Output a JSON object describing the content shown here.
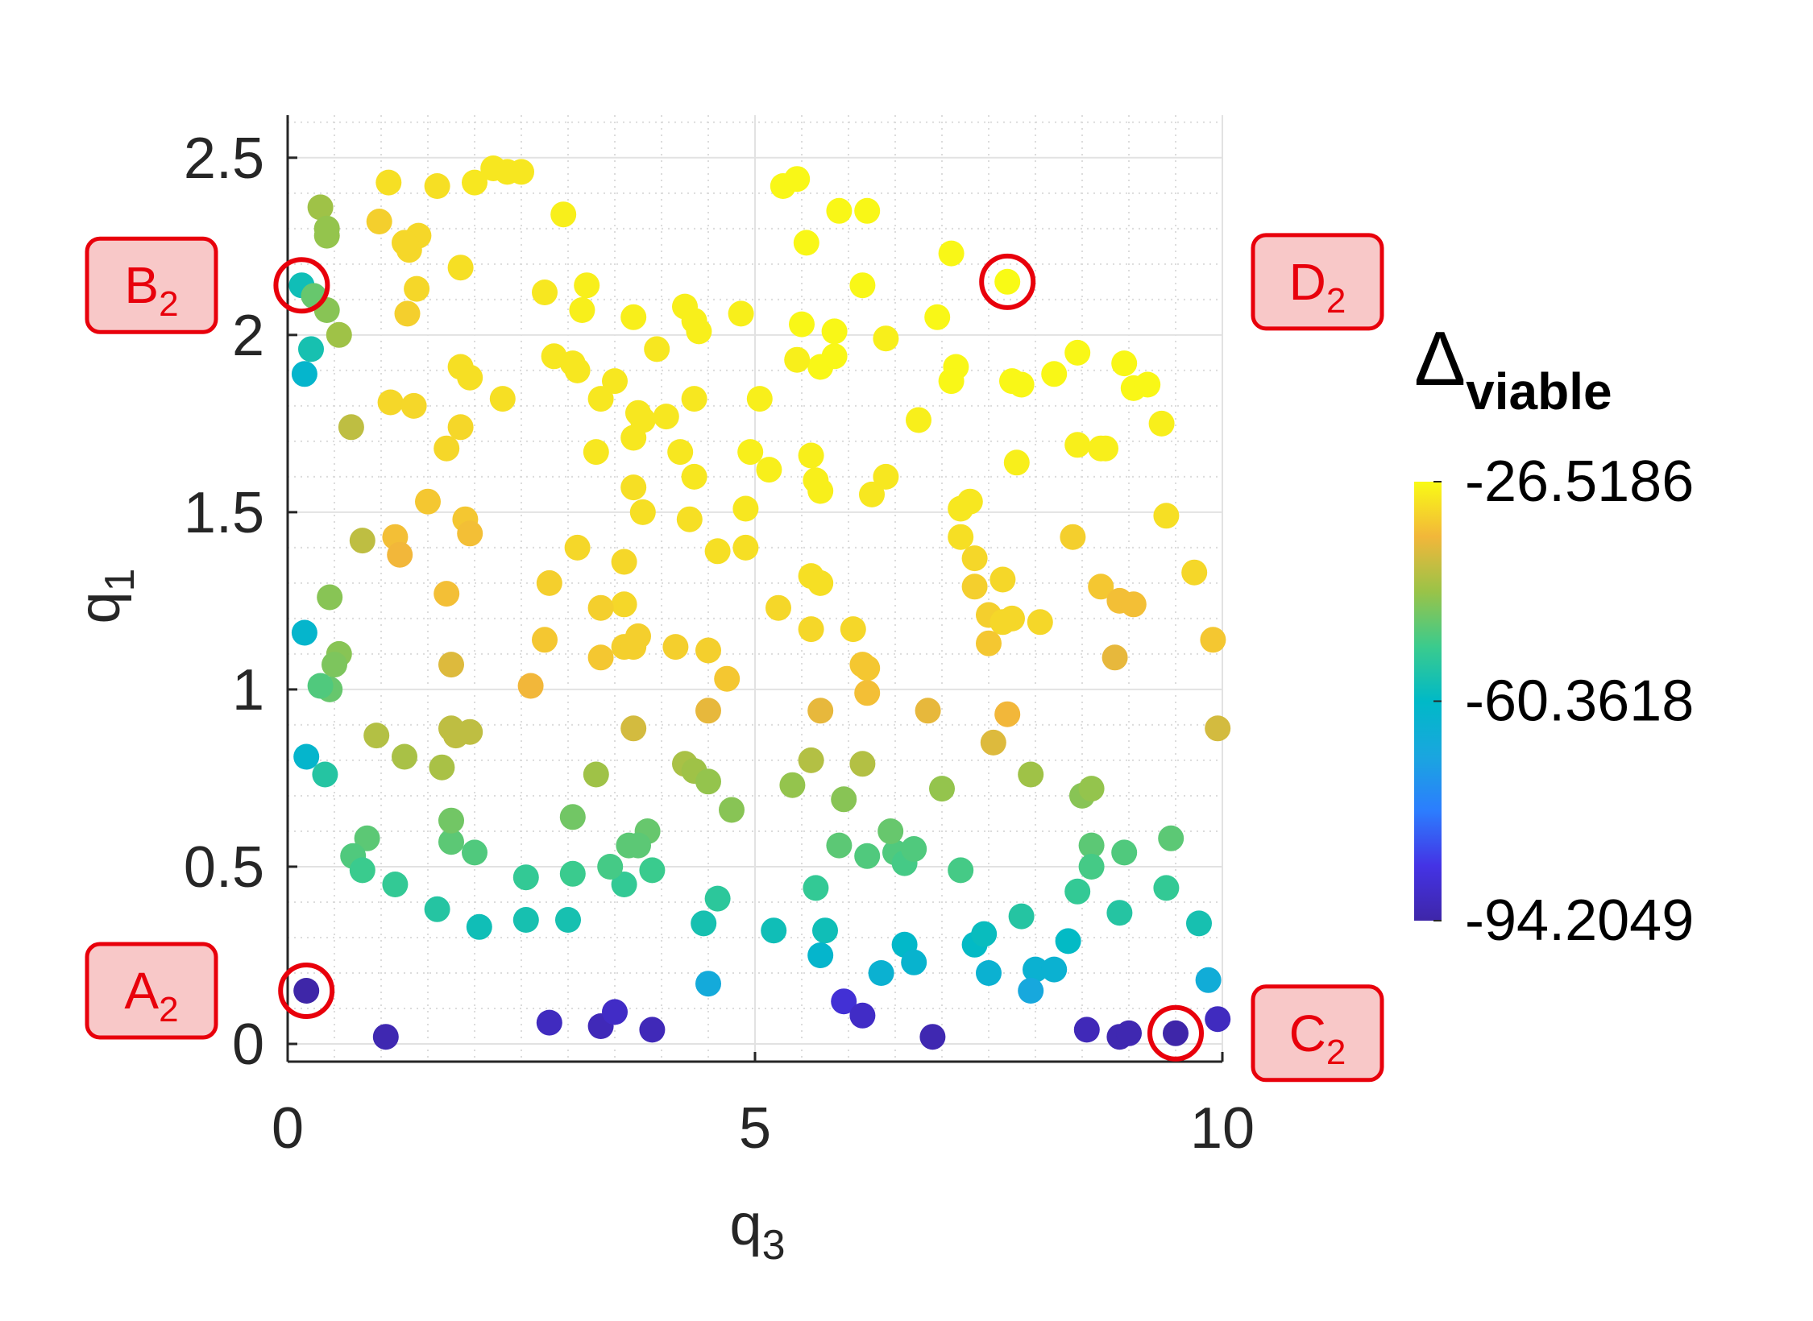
{
  "chart_data": {
    "type": "scatter",
    "xlabel": "q",
    "xlabel_sub": "3",
    "ylabel": "q",
    "ylabel_sub": "1",
    "xlim": [
      0,
      10
    ],
    "ylim": [
      -0.05,
      2.62
    ],
    "xticks": [
      0,
      5,
      10
    ],
    "yticks": [
      0,
      0.5,
      1,
      1.5,
      2,
      2.5
    ],
    "xtick_labels": [
      "0",
      "5",
      "10"
    ],
    "ytick_labels": [
      "0",
      "0.5",
      "1",
      "1.5",
      "2",
      "2.5"
    ],
    "grid": true,
    "minor_grid": true,
    "colorbar": {
      "title": "Δ",
      "title_sub": "viable",
      "min": -94.2049,
      "max": -26.5186,
      "tick_labels": [
        "-26.5186",
        "-60.3618",
        "-94.2049"
      ],
      "tick_values": [
        -26.5186,
        -60.3618,
        -94.2049
      ],
      "colormap": "parula"
    },
    "highlighted_points": [
      {
        "id": "A",
        "sub": "2",
        "x": 0.2,
        "y": 0.15,
        "label_side": "left"
      },
      {
        "id": "B",
        "sub": "2",
        "x": 0.15,
        "y": 2.14,
        "label_side": "left"
      },
      {
        "id": "C",
        "sub": "2",
        "x": 9.5,
        "y": 0.03,
        "label_side": "right"
      },
      {
        "id": "D",
        "sub": "2",
        "x": 7.7,
        "y": 2.15,
        "label_side": "right"
      }
    ],
    "highlight_color": "#e8000b",
    "highlight_fill": "#f8c8c8",
    "points": [
      [
        0.15,
        2.14,
        -58
      ],
      [
        0.35,
        2.36,
        -43
      ],
      [
        0.42,
        2.28,
        -44
      ],
      [
        0.42,
        2.3,
        -44
      ],
      [
        0.28,
        2.11,
        -48
      ],
      [
        0.42,
        2.07,
        -45
      ],
      [
        0.25,
        1.96,
        -57
      ],
      [
        0.18,
        1.89,
        -62
      ],
      [
        0.55,
        2.0,
        -43
      ],
      [
        0.68,
        1.74,
        -40
      ],
      [
        1.08,
        2.43,
        -30
      ],
      [
        1.6,
        2.42,
        -30
      ],
      [
        1.4,
        2.28,
        -31
      ],
      [
        1.3,
        2.24,
        -31
      ],
      [
        1.25,
        2.26,
        -31
      ],
      [
        0.98,
        2.32,
        -32
      ],
      [
        1.38,
        2.13,
        -31
      ],
      [
        1.28,
        2.06,
        -32
      ],
      [
        2.0,
        2.43,
        -29
      ],
      [
        2.2,
        2.47,
        -29
      ],
      [
        2.35,
        2.46,
        -29
      ],
      [
        2.5,
        2.46,
        -29
      ],
      [
        1.85,
        2.19,
        -30
      ],
      [
        2.95,
        2.34,
        -28
      ],
      [
        2.75,
        2.12,
        -29
      ],
      [
        3.2,
        2.14,
        -28
      ],
      [
        3.15,
        2.07,
        -28
      ],
      [
        2.85,
        1.94,
        -29
      ],
      [
        3.05,
        1.92,
        -29
      ],
      [
        3.1,
        1.9,
        -29
      ],
      [
        1.85,
        1.91,
        -30
      ],
      [
        1.95,
        1.88,
        -30
      ],
      [
        2.3,
        1.82,
        -30
      ],
      [
        3.35,
        1.82,
        -29
      ],
      [
        3.5,
        1.87,
        -29
      ],
      [
        3.7,
        2.05,
        -28
      ],
      [
        4.25,
        2.08,
        -28
      ],
      [
        4.35,
        2.04,
        -28
      ],
      [
        4.4,
        2.01,
        -28
      ],
      [
        4.85,
        2.06,
        -28
      ],
      [
        3.95,
        1.96,
        -29
      ],
      [
        3.75,
        1.78,
        -29
      ],
      [
        3.8,
        1.76,
        -29
      ],
      [
        4.05,
        1.77,
        -29
      ],
      [
        3.7,
        1.71,
        -29
      ],
      [
        3.3,
        1.67,
        -29
      ],
      [
        4.2,
        1.67,
        -29
      ],
      [
        4.35,
        1.82,
        -29
      ],
      [
        4.35,
        1.6,
        -29
      ],
      [
        4.95,
        1.67,
        -28
      ],
      [
        1.1,
        1.81,
        -31
      ],
      [
        1.35,
        1.8,
        -31
      ],
      [
        1.85,
        1.74,
        -31
      ],
      [
        1.7,
        1.68,
        -31
      ],
      [
        1.5,
        1.53,
        -33
      ],
      [
        1.9,
        1.48,
        -33
      ],
      [
        1.95,
        1.44,
        -34
      ],
      [
        1.15,
        1.43,
        -34
      ],
      [
        1.2,
        1.38,
        -35
      ],
      [
        0.8,
        1.42,
        -40
      ],
      [
        3.7,
        1.57,
        -30
      ],
      [
        3.8,
        1.5,
        -30
      ],
      [
        4.3,
        1.48,
        -30
      ],
      [
        4.9,
        1.51,
        -29
      ],
      [
        5.05,
        1.82,
        -28
      ],
      [
        5.15,
        1.62,
        -28
      ],
      [
        5.3,
        2.42,
        -27
      ],
      [
        5.45,
        2.44,
        -27
      ],
      [
        5.55,
        2.26,
        -27
      ],
      [
        5.5,
        2.03,
        -27
      ],
      [
        5.85,
        2.01,
        -27
      ],
      [
        5.7,
        1.91,
        -27
      ],
      [
        5.85,
        1.94,
        -27
      ],
      [
        5.45,
        1.93,
        -28
      ],
      [
        5.6,
        1.66,
        -28
      ],
      [
        5.65,
        1.59,
        -28
      ],
      [
        5.7,
        1.56,
        -28
      ],
      [
        5.9,
        2.35,
        -27
      ],
      [
        6.2,
        2.35,
        -27
      ],
      [
        6.15,
        2.14,
        -27
      ],
      [
        6.4,
        1.99,
        -28
      ],
      [
        6.25,
        1.55,
        -29
      ],
      [
        6.4,
        1.6,
        -29
      ],
      [
        6.75,
        1.76,
        -28
      ],
      [
        6.95,
        2.05,
        -27
      ],
      [
        7.1,
        2.23,
        -27
      ],
      [
        7.15,
        1.91,
        -27
      ],
      [
        7.1,
        1.87,
        -27
      ],
      [
        7.7,
        2.15,
        -26.6
      ],
      [
        7.75,
        1.87,
        -27
      ],
      [
        7.85,
        1.86,
        -27
      ],
      [
        8.2,
        1.89,
        -27
      ],
      [
        8.45,
        1.95,
        -27
      ],
      [
        8.95,
        1.92,
        -27
      ],
      [
        9.05,
        1.85,
        -27
      ],
      [
        9.2,
        1.86,
        -27
      ],
      [
        9.35,
        1.75,
        -28
      ],
      [
        8.45,
        1.69,
        -28
      ],
      [
        8.75,
        1.68,
        -28
      ],
      [
        8.7,
        1.68,
        -28
      ],
      [
        7.8,
        1.64,
        -28
      ],
      [
        7.2,
        1.51,
        -29
      ],
      [
        7.3,
        1.53,
        -29
      ],
      [
        7.2,
        1.43,
        -30
      ],
      [
        7.35,
        1.37,
        -31
      ],
      [
        7.65,
        1.31,
        -31
      ],
      [
        7.75,
        1.2,
        -31
      ],
      [
        7.35,
        1.29,
        -32
      ],
      [
        7.5,
        1.21,
        -32
      ],
      [
        7.65,
        1.19,
        -31
      ],
      [
        8.05,
        1.19,
        -31
      ],
      [
        7.5,
        1.13,
        -33
      ],
      [
        8.4,
        1.43,
        -32
      ],
      [
        8.7,
        1.29,
        -33
      ],
      [
        8.9,
        1.25,
        -34
      ],
      [
        9.05,
        1.24,
        -34
      ],
      [
        9.4,
        1.49,
        -30
      ],
      [
        9.7,
        1.33,
        -31
      ],
      [
        9.9,
        1.14,
        -33
      ],
      [
        8.85,
        1.09,
        -36
      ],
      [
        9.95,
        0.89,
        -38
      ],
      [
        5.6,
        1.32,
        -30
      ],
      [
        5.7,
        1.3,
        -30
      ],
      [
        5.6,
        1.17,
        -31
      ],
      [
        6.05,
        1.17,
        -31
      ],
      [
        6.15,
        1.07,
        -33
      ],
      [
        6.2,
        1.06,
        -33
      ],
      [
        6.2,
        0.99,
        -34
      ],
      [
        5.25,
        1.23,
        -31
      ],
      [
        4.9,
        1.4,
        -30
      ],
      [
        4.6,
        1.39,
        -30
      ],
      [
        4.5,
        1.11,
        -32
      ],
      [
        4.7,
        1.03,
        -33
      ],
      [
        4.15,
        1.12,
        -32
      ],
      [
        3.6,
        1.36,
        -31
      ],
      [
        3.6,
        1.24,
        -31
      ],
      [
        3.6,
        1.12,
        -32
      ],
      [
        3.7,
        1.12,
        -32
      ],
      [
        3.75,
        1.15,
        -32
      ],
      [
        3.35,
        1.23,
        -32
      ],
      [
        3.35,
        1.09,
        -33
      ],
      [
        3.1,
        1.4,
        -31
      ],
      [
        2.8,
        1.3,
        -32
      ],
      [
        2.75,
        1.14,
        -33
      ],
      [
        2.6,
        1.01,
        -35
      ],
      [
        1.7,
        1.27,
        -34
      ],
      [
        1.75,
        1.07,
        -37
      ],
      [
        1.75,
        0.89,
        -40
      ],
      [
        1.8,
        0.87,
        -40
      ],
      [
        1.95,
        0.88,
        -40
      ],
      [
        3.7,
        0.89,
        -38
      ],
      [
        4.5,
        0.94,
        -36
      ],
      [
        5.7,
        0.94,
        -36
      ],
      [
        6.85,
        0.94,
        -36
      ],
      [
        7.7,
        0.93,
        -35
      ],
      [
        7.55,
        0.85,
        -37
      ],
      [
        5.6,
        0.8,
        -41
      ],
      [
        6.15,
        0.79,
        -41
      ],
      [
        4.25,
        0.79,
        -42
      ],
      [
        4.35,
        0.77,
        -43
      ],
      [
        4.5,
        0.74,
        -44
      ],
      [
        4.75,
        0.66,
        -45
      ],
      [
        3.3,
        0.76,
        -43
      ],
      [
        3.05,
        0.64,
        -47
      ],
      [
        5.4,
        0.73,
        -44
      ],
      [
        5.95,
        0.69,
        -45
      ],
      [
        7.0,
        0.72,
        -44
      ],
      [
        7.95,
        0.76,
        -43
      ],
      [
        8.5,
        0.7,
        -45
      ],
      [
        8.6,
        0.72,
        -44
      ],
      [
        8.6,
        0.56,
        -49
      ],
      [
        8.95,
        0.54,
        -50
      ],
      [
        9.45,
        0.58,
        -49
      ],
      [
        8.6,
        0.5,
        -51
      ],
      [
        8.45,
        0.43,
        -53
      ],
      [
        9.4,
        0.44,
        -53
      ],
      [
        8.9,
        0.37,
        -55
      ],
      [
        9.75,
        0.34,
        -57
      ],
      [
        8.35,
        0.29,
        -60
      ],
      [
        8.0,
        0.21,
        -64
      ],
      [
        8.2,
        0.21,
        -64
      ],
      [
        9.85,
        0.18,
        -66
      ],
      [
        7.95,
        0.15,
        -68
      ],
      [
        7.85,
        0.36,
        -55
      ],
      [
        7.35,
        0.28,
        -60
      ],
      [
        7.45,
        0.31,
        -59
      ],
      [
        7.5,
        0.2,
        -64
      ],
      [
        7.2,
        0.49,
        -51
      ],
      [
        6.6,
        0.28,
        -61
      ],
      [
        6.7,
        0.23,
        -63
      ],
      [
        6.35,
        0.2,
        -64
      ],
      [
        6.5,
        0.54,
        -50
      ],
      [
        6.6,
        0.51,
        -51
      ],
      [
        6.7,
        0.55,
        -50
      ],
      [
        6.45,
        0.6,
        -48
      ],
      [
        6.2,
        0.53,
        -50
      ],
      [
        5.9,
        0.56,
        -49
      ],
      [
        5.65,
        0.44,
        -53
      ],
      [
        5.75,
        0.32,
        -58
      ],
      [
        5.7,
        0.25,
        -62
      ],
      [
        5.2,
        0.32,
        -58
      ],
      [
        4.6,
        0.41,
        -54
      ],
      [
        4.45,
        0.34,
        -57
      ],
      [
        4.5,
        0.17,
        -67
      ],
      [
        3.9,
        0.49,
        -52
      ],
      [
        3.85,
        0.6,
        -48
      ],
      [
        3.65,
        0.56,
        -49
      ],
      [
        3.75,
        0.56,
        -49
      ],
      [
        3.6,
        0.45,
        -53
      ],
      [
        3.45,
        0.5,
        -51
      ],
      [
        3.05,
        0.48,
        -52
      ],
      [
        3.0,
        0.35,
        -57
      ],
      [
        2.55,
        0.47,
        -53
      ],
      [
        2.55,
        0.35,
        -57
      ],
      [
        2.05,
        0.33,
        -58
      ],
      [
        2.0,
        0.54,
        -50
      ],
      [
        1.75,
        0.57,
        -49
      ],
      [
        1.75,
        0.63,
        -47
      ],
      [
        1.6,
        0.38,
        -55
      ],
      [
        1.15,
        0.45,
        -53
      ],
      [
        1.25,
        0.81,
        -42
      ],
      [
        0.95,
        0.87,
        -41
      ],
      [
        1.65,
        0.78,
        -42
      ],
      [
        0.85,
        0.58,
        -49
      ],
      [
        0.7,
        0.53,
        -50
      ],
      [
        0.8,
        0.49,
        -52
      ],
      [
        0.55,
        1.1,
        -45
      ],
      [
        0.5,
        1.07,
        -46
      ],
      [
        0.45,
        1.0,
        -48
      ],
      [
        0.45,
        1.26,
        -45
      ],
      [
        0.35,
        1.01,
        -50
      ],
      [
        0.4,
        0.76,
        -55
      ],
      [
        0.2,
        0.81,
        -62
      ],
      [
        0.18,
        1.16,
        -62
      ],
      [
        0.2,
        0.15,
        -94.2
      ],
      [
        1.05,
        0.02,
        -93
      ],
      [
        2.8,
        0.06,
        -91
      ],
      [
        3.35,
        0.05,
        -92
      ],
      [
        3.5,
        0.09,
        -90
      ],
      [
        3.9,
        0.04,
        -92
      ],
      [
        5.95,
        0.12,
        -88
      ],
      [
        6.15,
        0.08,
        -90
      ],
      [
        6.9,
        0.02,
        -93
      ],
      [
        8.55,
        0.04,
        -92
      ],
      [
        8.9,
        0.02,
        -93
      ],
      [
        9.0,
        0.03,
        -93
      ],
      [
        9.5,
        0.03,
        -94
      ],
      [
        9.95,
        0.07,
        -91
      ]
    ]
  }
}
